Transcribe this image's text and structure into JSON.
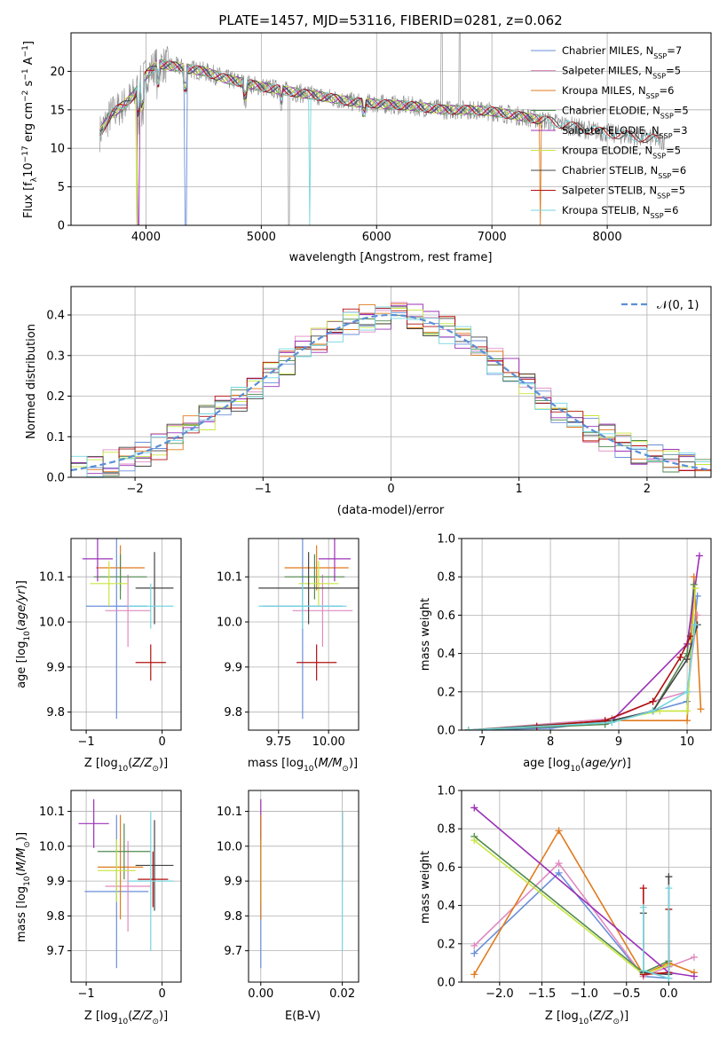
{
  "figure_title": "PLATE=1457, MJD=53116, FIBERID=0281, z=0.062",
  "colors": {
    "Chabrier MILES": "#6a8fd9",
    "Salpeter MILES": "#e08ac0",
    "Kroupa MILES": "#e07b1f",
    "Chabrier ELODIE": "#4f8a4f",
    "Salpeter ELODIE": "#9b30b8",
    "Kroupa ELODIE": "#c8e640",
    "Chabrier STELIB": "#444444",
    "Salpeter STELIB": "#b01010",
    "Kroupa STELIB": "#76d6e0",
    "data": "#888888",
    "normal": "#5b8fd6"
  },
  "legend_models": [
    "Chabrier MILES, N_SSP=7",
    "Salpeter MILES, N_SSP=5",
    "Kroupa MILES, N_SSP=6",
    "Chabrier ELODIE, N_SSP=5",
    "Salpeter ELODIE, N_SSP=3",
    "Kroupa ELODIE, N_SSP=5",
    "Chabrier STELIB, N_SSP=6",
    "Salpeter STELIB, N_SSP=5",
    "Kroupa STELIB, N_SSP=6"
  ],
  "chart_data": [
    {
      "type": "line",
      "title": "PLATE=1457, MJD=53116, FIBERID=0281, z=0.062",
      "xlabel": "wavelength [Angstrom, rest frame]",
      "ylabel": "Flux [f_λ 10^-17 erg cm^-2 s^-1 A^-1]",
      "xlim": [
        3350,
        8900
      ],
      "ylim": [
        0,
        25
      ],
      "xticks": [
        4000,
        5000,
        6000,
        7000,
        8000
      ],
      "yticks": [
        0,
        5,
        10,
        15,
        20
      ],
      "continuum": {
        "x": [
          3600,
          3700,
          3800,
          3900,
          4000,
          4100,
          4300,
          4500,
          4700,
          5000,
          5200,
          5500,
          5800,
          6000,
          6300,
          6600,
          6800,
          7000,
          7200,
          7500,
          7800,
          8000,
          8200,
          8500
        ],
        "y": [
          12,
          14.5,
          15.5,
          17,
          19.5,
          21,
          20.5,
          20,
          19,
          18,
          17.5,
          16.8,
          16,
          15.8,
          15.5,
          15,
          15,
          14.8,
          14.3,
          13.5,
          12.5,
          12,
          11.6,
          11
        ]
      },
      "legend": [
        "Chabrier MILES, N_SSP=7",
        "Salpeter MILES, N_SSP=5",
        "Kroupa MILES, N_SSP=6",
        "Chabrier ELODIE, N_SSP=5",
        "Salpeter ELODIE, N_SSP=3",
        "Kroupa ELODIE, N_SSP=5",
        "Chabrier STELIB, N_SSP=6",
        "Salpeter STELIB, N_SSP=5",
        "Kroupa STELIB, N_SSP=6"
      ],
      "legend_position": "upper right"
    },
    {
      "type": "histogram",
      "xlabel": "(data-model)/error",
      "ylabel": "Normed distribution",
      "xlim": [
        -2.5,
        2.5
      ],
      "ylim": [
        0,
        0.47
      ],
      "xticks": [
        -2,
        -1,
        0,
        1,
        2
      ],
      "yticks": [
        0.0,
        0.1,
        0.2,
        0.3,
        0.4
      ],
      "bin_width": 0.1,
      "series": [
        {
          "name": "Chabrier MILES",
          "values": [
            0.03,
            0.045,
            0.05,
            0.065,
            0.08,
            0.1,
            0.13,
            0.15,
            0.17,
            0.19,
            0.22,
            0.25,
            0.28,
            0.3,
            0.32,
            0.34,
            0.36,
            0.37,
            0.38,
            0.39,
            0.4,
            0.39,
            0.38,
            0.37,
            0.35,
            0.33,
            0.31,
            0.28,
            0.26,
            0.23,
            0.2,
            0.17,
            0.15,
            0.13,
            0.1,
            0.08,
            0.06,
            0.05,
            0.035,
            0.025
          ]
        },
        {
          "name": "N(0,1)",
          "style": "dashed"
        }
      ],
      "legend": [
        "N(0,1)"
      ],
      "legend_position": "upper right"
    },
    {
      "type": "scatter",
      "xlabel": "Z [log10(Z/Z⊙)]",
      "ylabel": "age [log10(age/yr)]",
      "xlim": [
        -1.2,
        0.25
      ],
      "ylim": [
        9.76,
        10.185
      ],
      "xticks": [
        -1,
        0
      ],
      "yticks": [
        9.8,
        9.9,
        10.0,
        10.1
      ],
      "points": [
        {
          "name": "Chabrier MILES",
          "x": -0.6,
          "xerr": 0.4,
          "y": 10.035,
          "yerr": 0.25
        },
        {
          "name": "Salpeter MILES",
          "x": -0.45,
          "xerr": 0.3,
          "y": 10.025,
          "yerr": 0.08
        },
        {
          "name": "Kroupa MILES",
          "x": -0.55,
          "xerr": 0.32,
          "y": 10.12,
          "yerr": 0.05
        },
        {
          "name": "Chabrier ELODIE",
          "x": -0.55,
          "xerr": 0.35,
          "y": 10.1,
          "yerr": 0.05
        },
        {
          "name": "Salpeter ELODIE",
          "x": -0.85,
          "xerr": 0.2,
          "y": 10.14,
          "yerr": 0.05
        },
        {
          "name": "Kroupa ELODIE",
          "x": -0.7,
          "xerr": 0.25,
          "y": 10.085,
          "yerr": 0.05
        },
        {
          "name": "Chabrier STELIB",
          "x": -0.1,
          "xerr": 0.25,
          "y": 10.075,
          "yerr": 0.08
        },
        {
          "name": "Salpeter STELIB",
          "x": -0.15,
          "xerr": 0.2,
          "y": 9.91,
          "yerr": 0.04
        },
        {
          "name": "Kroupa STELIB",
          "x": -0.15,
          "xerr": 0.3,
          "y": 10.035,
          "yerr": 0.05
        }
      ]
    },
    {
      "type": "scatter",
      "xlabel": "mass [log10(M/M⊙)]",
      "ylabel": "",
      "xlim": [
        9.6,
        10.15
      ],
      "ylim": [
        9.76,
        10.185
      ],
      "xticks": [
        9.75,
        10.0
      ],
      "yticks": [
        9.8,
        9.9,
        10.0,
        10.1
      ],
      "points": [
        {
          "name": "Chabrier MILES",
          "x": 9.87,
          "xerr": 0.2,
          "y": 10.035,
          "yerr": 0.25
        },
        {
          "name": "Salpeter MILES",
          "x": 9.97,
          "xerr": 0.15,
          "y": 10.025,
          "yerr": 0.08
        },
        {
          "name": "Kroupa MILES",
          "x": 9.94,
          "xerr": 0.16,
          "y": 10.12,
          "yerr": 0.05
        },
        {
          "name": "Chabrier ELODIE",
          "x": 9.93,
          "xerr": 0.15,
          "y": 10.1,
          "yerr": 0.05
        },
        {
          "name": "Salpeter ELODIE",
          "x": 10.03,
          "xerr": 0.08,
          "y": 10.14,
          "yerr": 0.05
        },
        {
          "name": "Kroupa ELODIE",
          "x": 9.95,
          "xerr": 0.1,
          "y": 10.085,
          "yerr": 0.05
        },
        {
          "name": "Chabrier STELIB",
          "x": 9.9,
          "xerr": 0.25,
          "y": 10.075,
          "yerr": 0.08
        },
        {
          "name": "Salpeter STELIB",
          "x": 9.94,
          "xerr": 0.1,
          "y": 9.91,
          "yerr": 0.04
        },
        {
          "name": "Kroupa STELIB",
          "x": 9.87,
          "xerr": 0.22,
          "y": 10.035,
          "yerr": 0.05
        }
      ]
    },
    {
      "type": "line",
      "xlabel": "age [log10(age/yr)]",
      "ylabel": "mass weight",
      "xlim": [
        6.7,
        10.35
      ],
      "ylim": [
        0,
        1.0
      ],
      "xticks": [
        7,
        8,
        9,
        10
      ],
      "yticks": [
        0.0,
        0.2,
        0.4,
        0.6,
        0.8,
        1.0
      ],
      "series": [
        {
          "name": "Chabrier MILES",
          "x": [
            6.8,
            8.0,
            8.9,
            9.5,
            10.0,
            10.15
          ],
          "y": [
            0.0,
            0.01,
            0.05,
            0.1,
            0.15,
            0.7
          ]
        },
        {
          "name": "Salpeter MILES",
          "x": [
            6.8,
            8.9,
            9.5,
            10.0,
            10.15
          ],
          "y": [
            0.0,
            0.06,
            0.15,
            0.2,
            0.6
          ]
        },
        {
          "name": "Kroupa MILES",
          "x": [
            6.8,
            8.9,
            10.0,
            10.1,
            10.2
          ],
          "y": [
            0.0,
            0.05,
            0.05,
            0.8,
            0.11
          ]
        },
        {
          "name": "Chabrier ELODIE",
          "x": [
            6.8,
            8.8,
            9.5,
            10.0,
            10.1
          ],
          "y": [
            0.0,
            0.03,
            0.1,
            0.4,
            0.76
          ]
        },
        {
          "name": "Salpeter ELODIE",
          "x": [
            8.9,
            10.0,
            10.18
          ],
          "y": [
            0.05,
            0.45,
            0.91
          ]
        },
        {
          "name": "Kroupa ELODIE",
          "x": [
            6.8,
            8.9,
            9.6,
            10.0,
            10.12
          ],
          "y": [
            0.0,
            0.05,
            0.1,
            0.1,
            0.74
          ]
        },
        {
          "name": "Chabrier STELIB",
          "x": [
            6.8,
            8.9,
            9.5,
            10.0,
            10.15
          ],
          "y": [
            0.0,
            0.05,
            0.1,
            0.37,
            0.55
          ]
        },
        {
          "name": "Salpeter STELIB",
          "x": [
            7.8,
            8.8,
            9.5,
            9.9,
            10.05
          ],
          "y": [
            0.02,
            0.05,
            0.15,
            0.38,
            0.49
          ]
        },
        {
          "name": "Kroupa STELIB",
          "x": [
            6.8,
            8.9,
            9.5,
            10.0,
            10.12
          ],
          "y": [
            0.0,
            0.04,
            0.1,
            0.2,
            0.55
          ]
        }
      ]
    },
    {
      "type": "scatter",
      "xlabel": "Z [log10(Z/Z⊙)]",
      "ylabel": "mass [log10(M/M⊙)]",
      "xlim": [
        -1.2,
        0.25
      ],
      "ylim": [
        9.61,
        10.16
      ],
      "xticks": [
        -1,
        0
      ],
      "yticks": [
        9.7,
        9.8,
        9.9,
        10.0,
        10.1
      ],
      "points": [
        {
          "name": "Chabrier MILES",
          "x": -0.6,
          "xerr": 0.42,
          "y": 9.87,
          "yerr": 0.22
        },
        {
          "name": "Salpeter MILES",
          "x": -0.45,
          "xerr": 0.3,
          "y": 9.885,
          "yerr": 0.13
        },
        {
          "name": "Kroupa MILES",
          "x": -0.55,
          "xerr": 0.3,
          "y": 9.94,
          "yerr": 0.15
        },
        {
          "name": "Chabrier ELODIE",
          "x": -0.5,
          "xerr": 0.35,
          "y": 9.985,
          "yerr": 0.08
        },
        {
          "name": "Salpeter ELODIE",
          "x": -0.9,
          "xerr": 0.2,
          "y": 10.065,
          "yerr": 0.07
        },
        {
          "name": "Kroupa ELODIE",
          "x": -0.6,
          "xerr": 0.25,
          "y": 9.93,
          "yerr": 0.09
        },
        {
          "name": "Chabrier STELIB",
          "x": -0.1,
          "xerr": 0.25,
          "y": 9.945,
          "yerr": 0.13
        },
        {
          "name": "Salpeter STELIB",
          "x": -0.12,
          "xerr": 0.2,
          "y": 9.905,
          "yerr": 0.08
        },
        {
          "name": "Kroupa STELIB",
          "x": -0.15,
          "xerr": 0.3,
          "y": 9.9,
          "yerr": 0.2
        }
      ]
    },
    {
      "type": "scatter",
      "xlabel": "E(B-V)",
      "ylabel": "",
      "xlim": [
        -0.003,
        0.024
      ],
      "ylim": [
        9.61,
        10.16
      ],
      "xticks": [
        0.0,
        0.02
      ],
      "yticks": [
        9.7,
        9.8,
        9.9,
        10.0,
        10.1
      ],
      "points": [
        {
          "name": "Chabrier MILES",
          "x": 0.0,
          "y": 9.87,
          "yerr": 0.22
        },
        {
          "name": "Salpeter ELODIE",
          "x": 0.0,
          "y": 10.065,
          "yerr": 0.07
        },
        {
          "name": "Kroupa ELODIE",
          "x": 0.0,
          "y": 9.93,
          "yerr": 0.09
        },
        {
          "name": "Kroupa MILES",
          "x": 0.0,
          "y": 9.94,
          "yerr": 0.15
        },
        {
          "name": "Salpeter STELIB",
          "x": 0.02,
          "y": 10.0,
          "yerr": 0.1
        },
        {
          "name": "Kroupa STELIB",
          "x": 0.02,
          "y": 9.9,
          "yerr": 0.2
        }
      ]
    },
    {
      "type": "line",
      "xlabel": "Z [log10(Z/Z⊙)]",
      "ylabel": "mass weight",
      "xlim": [
        -2.45,
        0.5
      ],
      "ylim": [
        0,
        1.0
      ],
      "xticks": [
        -2.0,
        -1.5,
        -1.0,
        -0.5,
        0.0
      ],
      "yticks": [
        0.0,
        0.2,
        0.4,
        0.6,
        0.8,
        1.0
      ],
      "series": [
        {
          "name": "Chabrier MILES",
          "x": [
            -2.3,
            -1.3,
            -0.3,
            0.0
          ],
          "y": [
            0.15,
            0.57,
            0.03,
            0.02
          ]
        },
        {
          "name": "Salpeter MILES",
          "x": [
            -2.3,
            -1.3,
            -0.3,
            0.0,
            0.3
          ],
          "y": [
            0.19,
            0.62,
            0.03,
            0.08,
            0.13
          ]
        },
        {
          "name": "Kroupa MILES",
          "x": [
            -2.3,
            -1.3,
            -0.3,
            0.0,
            0.3
          ],
          "y": [
            0.04,
            0.79,
            0.04,
            0.1,
            0.05
          ]
        },
        {
          "name": "Chabrier ELODIE",
          "x": [
            -2.3,
            -0.3,
            0.0
          ],
          "y": [
            0.76,
            0.05,
            0.11
          ]
        },
        {
          "name": "Salpeter ELODIE",
          "x": [
            -2.3,
            0.0,
            0.3
          ],
          "y": [
            0.91,
            0.05,
            0.03
          ]
        },
        {
          "name": "Kroupa ELODIE",
          "x": [
            -2.3,
            -0.3,
            0.0
          ],
          "y": [
            0.74,
            0.04,
            0.09
          ]
        },
        {
          "name": "Chabrier STELIB",
          "x": [
            -0.3,
            -0.3,
            0.0,
            0.0
          ],
          "y": [
            0.36,
            0.05,
            0.04,
            0.55
          ]
        },
        {
          "name": "Salpeter STELIB",
          "x": [
            -0.3,
            -0.3,
            0.0,
            0.0
          ],
          "y": [
            0.49,
            0.04,
            0.05,
            0.38
          ]
        },
        {
          "name": "Kroupa STELIB",
          "x": [
            -0.3,
            -0.3,
            0.0,
            0.0
          ],
          "y": [
            0.39,
            0.06,
            0.02,
            0.49
          ]
        }
      ]
    }
  ]
}
